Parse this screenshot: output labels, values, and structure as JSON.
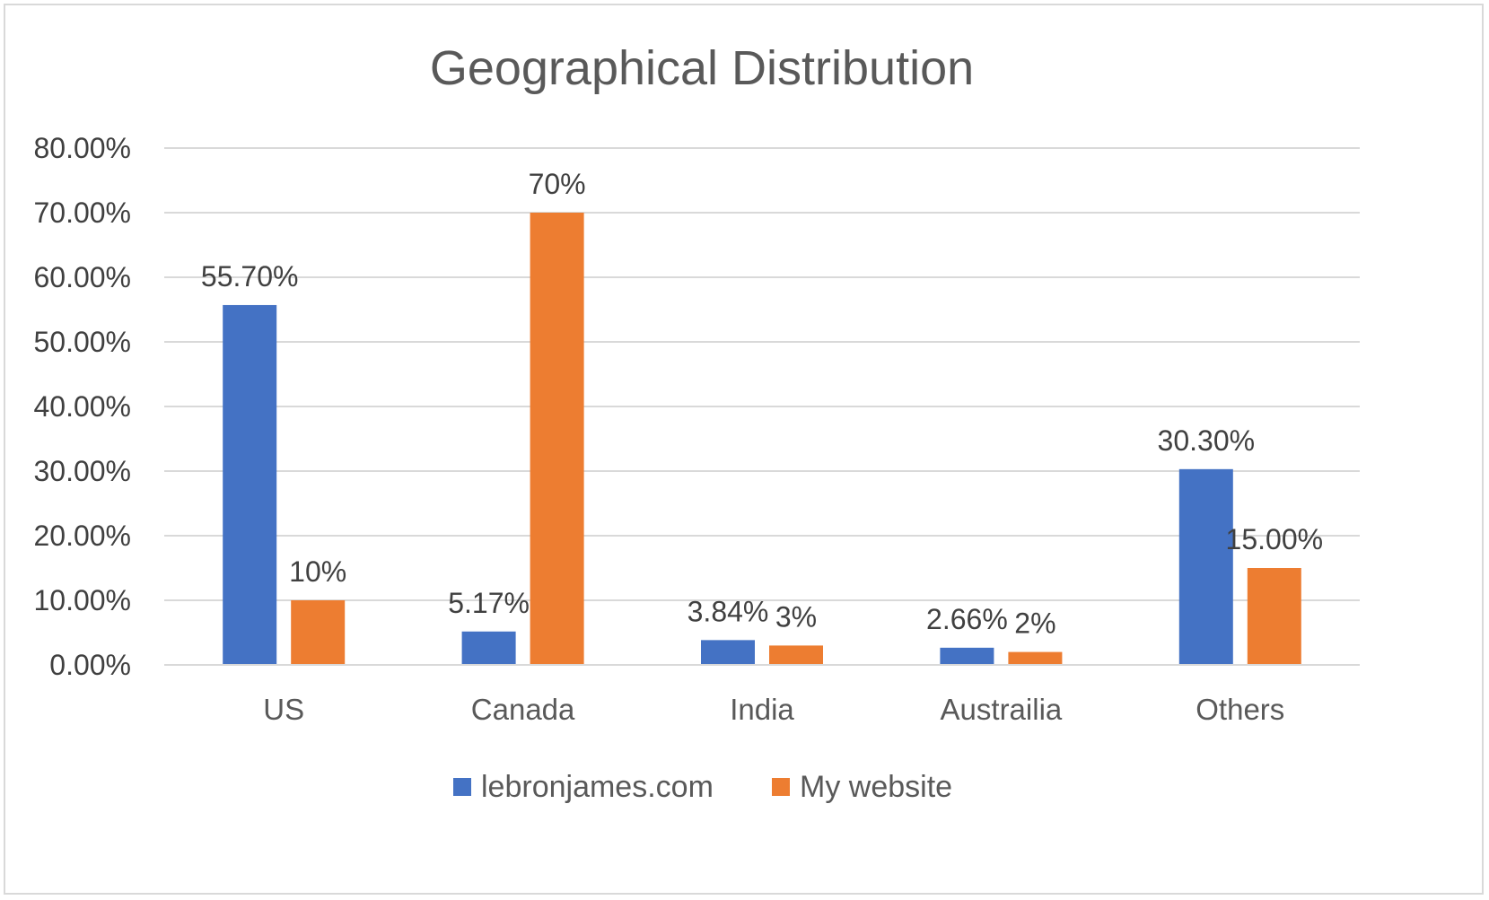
{
  "chart_data": {
    "type": "bar",
    "title": "Geographical Distribution",
    "categories": [
      "US",
      "Canada",
      "India",
      "Austrailia",
      "Others"
    ],
    "series": [
      {
        "name": "lebronjames.com",
        "color": "#4472c4",
        "values": [
          55.7,
          5.17,
          3.84,
          2.66,
          30.3
        ],
        "labels": [
          "55.70%",
          "5.17%",
          "3.84%",
          "2.66%",
          "30.30%"
        ]
      },
      {
        "name": "My website",
        "color": "#ed7d31",
        "values": [
          10,
          70,
          3,
          2,
          15
        ],
        "labels": [
          "10%",
          "70%",
          "3%",
          "2%",
          "15.00%"
        ]
      }
    ],
    "ylim": [
      0,
      80
    ],
    "yticks": [
      0,
      10,
      20,
      30,
      40,
      50,
      60,
      70,
      80
    ],
    "ytick_labels": [
      "0.00%",
      "10.00%",
      "20.00%",
      "30.00%",
      "40.00%",
      "50.00%",
      "60.00%",
      "70.00%",
      "80.00%"
    ],
    "grid": true,
    "legend_position": "bottom"
  }
}
